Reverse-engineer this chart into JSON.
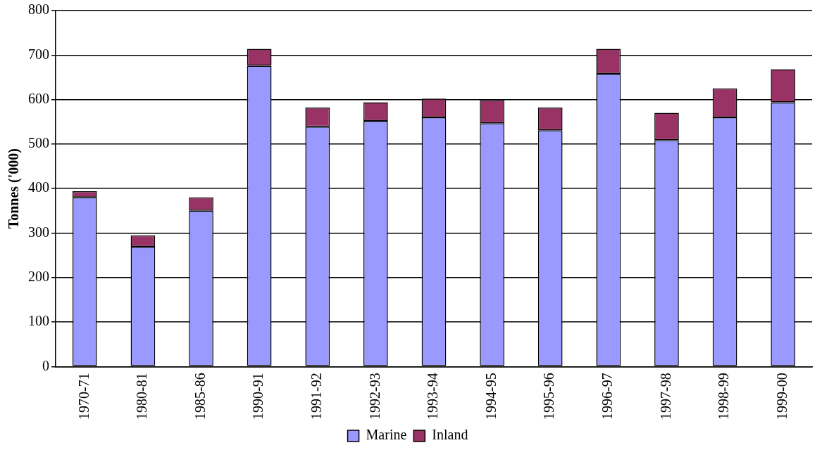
{
  "chart_data": {
    "type": "bar",
    "stacked": true,
    "ylabel": "Tonnes ('000)",
    "categories": [
      "1970-71",
      "1980-81",
      "1985-86",
      "1990-91",
      "1991-92",
      "1992-93",
      "1993-94",
      "1994-95",
      "1995-96",
      "1996-97",
      "1997-98",
      "1998-99",
      "1999-00"
    ],
    "series": [
      {
        "name": "Marine",
        "color": "#9999ff",
        "values": [
          380,
          269,
          350,
          676,
          539,
          552,
          560,
          547,
          531,
          658,
          509,
          560,
          594
        ]
      },
      {
        "name": "Inland",
        "color": "#993366",
        "values": [
          14,
          26,
          30,
          38,
          43,
          42,
          42,
          52,
          51,
          56,
          61,
          65,
          74
        ]
      }
    ],
    "ylim": [
      0,
      800
    ],
    "yticks": [
      0,
      100,
      200,
      300,
      400,
      500,
      600,
      700,
      800
    ],
    "grid": "y",
    "legend": "bottom"
  }
}
